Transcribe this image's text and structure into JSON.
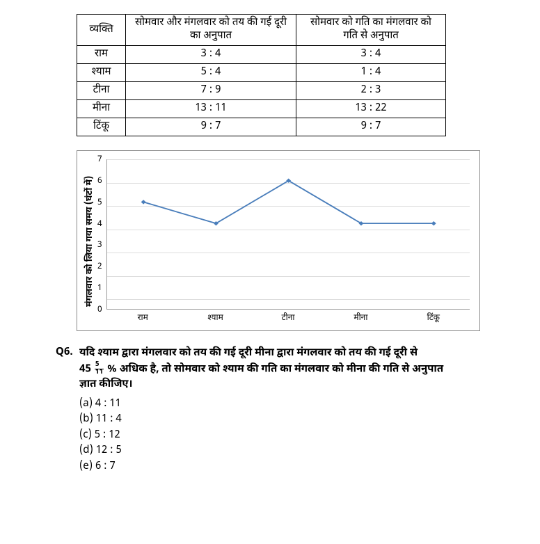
{
  "table": {
    "headers": {
      "person": "व्यक्ति",
      "distance_ratio": "सोमवार और मंगलवार को तय की गई दूरी का अनुपात",
      "speed_ratio": "सोमवार को गति का मंगलवार को गति से अनुपात"
    },
    "rows": [
      {
        "person": "राम",
        "distance_ratio": "3 : 4",
        "speed_ratio": "3 : 4"
      },
      {
        "person": "श्याम",
        "distance_ratio": "5 : 4",
        "speed_ratio": "1 : 4"
      },
      {
        "person": "टीना",
        "distance_ratio": "7 : 9",
        "speed_ratio": "2 : 3"
      },
      {
        "person": "मीना",
        "distance_ratio": "13 : 11",
        "speed_ratio": "13 : 22"
      },
      {
        "person": "टिंकू",
        "distance_ratio": "9 : 7",
        "speed_ratio": "9 : 7"
      }
    ]
  },
  "chart": {
    "type": "line",
    "y_label": "मंगलवार को लिया गया समय (घंटों में)",
    "categories": [
      "राम",
      "श्याम",
      "टीना",
      "मीना",
      "टिंकू"
    ],
    "values": [
      5,
      4,
      6,
      4,
      4
    ],
    "ylim": [
      0,
      7
    ],
    "ytick_step": 1,
    "line_color": "#4a7ebb",
    "marker_color": "#4a7ebb",
    "marker_shape": "diamond",
    "marker_size": 7,
    "line_width": 2,
    "grid_color": "#dddddd",
    "axis_color": "#999999",
    "background_color": "#ffffff",
    "label_fontsize": 12
  },
  "question": {
    "number": "Q6.",
    "line1": "यदि श्याम द्वारा मंगलवार को तय की गई दूरी मीना द्वारा मंगलवार को तय की गई दूरी से",
    "line2a": "45",
    "frac_num": "5",
    "frac_den": "11",
    "line2b": "% अधिक है, तो सोमवार को श्याम की गति का मंगलवार को मीना की गति से अनुपात",
    "line3": "ज्ञात कीजिए।",
    "options": [
      "(a) 4 : 11",
      "(b) 11 : 4",
      "(c) 5 : 12",
      "(d) 12 : 5",
      "(e) 6 : 7"
    ]
  }
}
